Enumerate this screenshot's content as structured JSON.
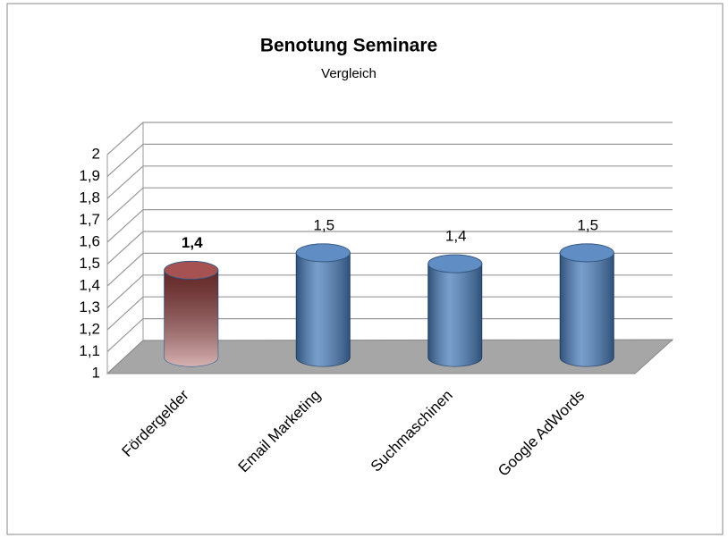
{
  "chart_data": {
    "type": "bar",
    "title": "Benotung Seminare",
    "subtitle": "Vergleich",
    "categories": [
      "Fördergelder",
      "Email Marketing",
      "Suchmaschinen",
      "Google AdWords"
    ],
    "values": [
      1.4,
      1.48,
      1.43,
      1.48
    ],
    "value_labels": [
      "1,4",
      "1,5",
      "1,4",
      "1,5"
    ],
    "colors": [
      "#9a3b3b",
      "#4a7ebb",
      "#4a7ebb",
      "#4a7ebb"
    ],
    "ylim": [
      1,
      2
    ],
    "yticks": [
      1,
      {
        "value": 1.1,
        "label": "1,1"
      },
      {
        "value": 1.2,
        "label": "1,2"
      },
      {
        "value": 1.3,
        "label": "1,3"
      },
      {
        "value": 1.4,
        "label": "1,4"
      },
      {
        "value": 1.5,
        "label": "1,5"
      },
      {
        "value": 1.6,
        "label": "1,6"
      },
      {
        "value": 1.7,
        "label": "1,7"
      },
      {
        "value": 1.8,
        "label": "1,8"
      },
      {
        "value": 1.9,
        "label": "1,9"
      },
      2
    ],
    "grid": true
  }
}
